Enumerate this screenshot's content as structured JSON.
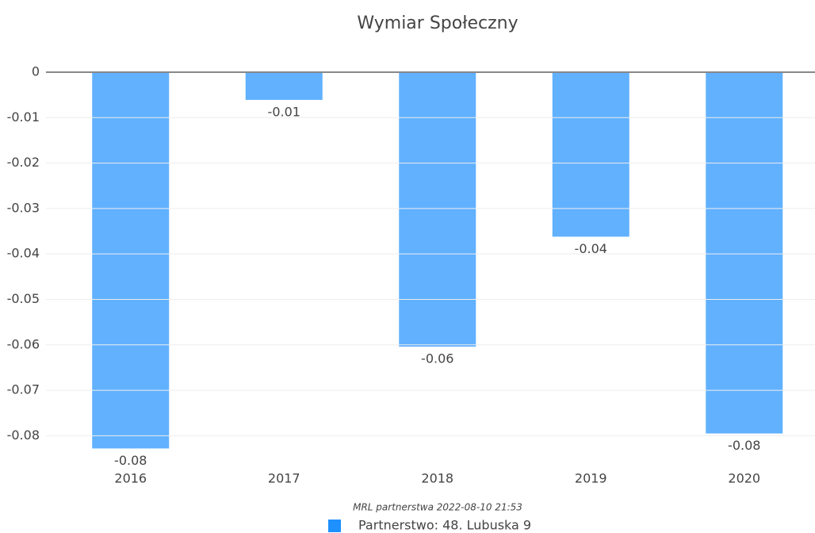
{
  "chart_data": {
    "type": "bar",
    "title": "Wymiar Społeczny",
    "categories": [
      "2016",
      "2017",
      "2018",
      "2019",
      "2020"
    ],
    "values": [
      -0.0828,
      -0.0061,
      -0.0604,
      -0.0362,
      -0.0795
    ],
    "value_labels": [
      "-0.08",
      "-0.01",
      "-0.06",
      "-0.04",
      "-0.08"
    ],
    "color": "#1e90ff",
    "ylim": [
      -0.0836,
      0
    ],
    "yticks": [
      0,
      -0.01,
      -0.02,
      -0.03,
      -0.04,
      -0.05,
      -0.06,
      -0.07,
      -0.08
    ],
    "grid": true,
    "annotation": "MRL partnerstwa 2022-08-10 21:53",
    "series_name": "Partnerstwo: 48. Lubuska 9"
  }
}
